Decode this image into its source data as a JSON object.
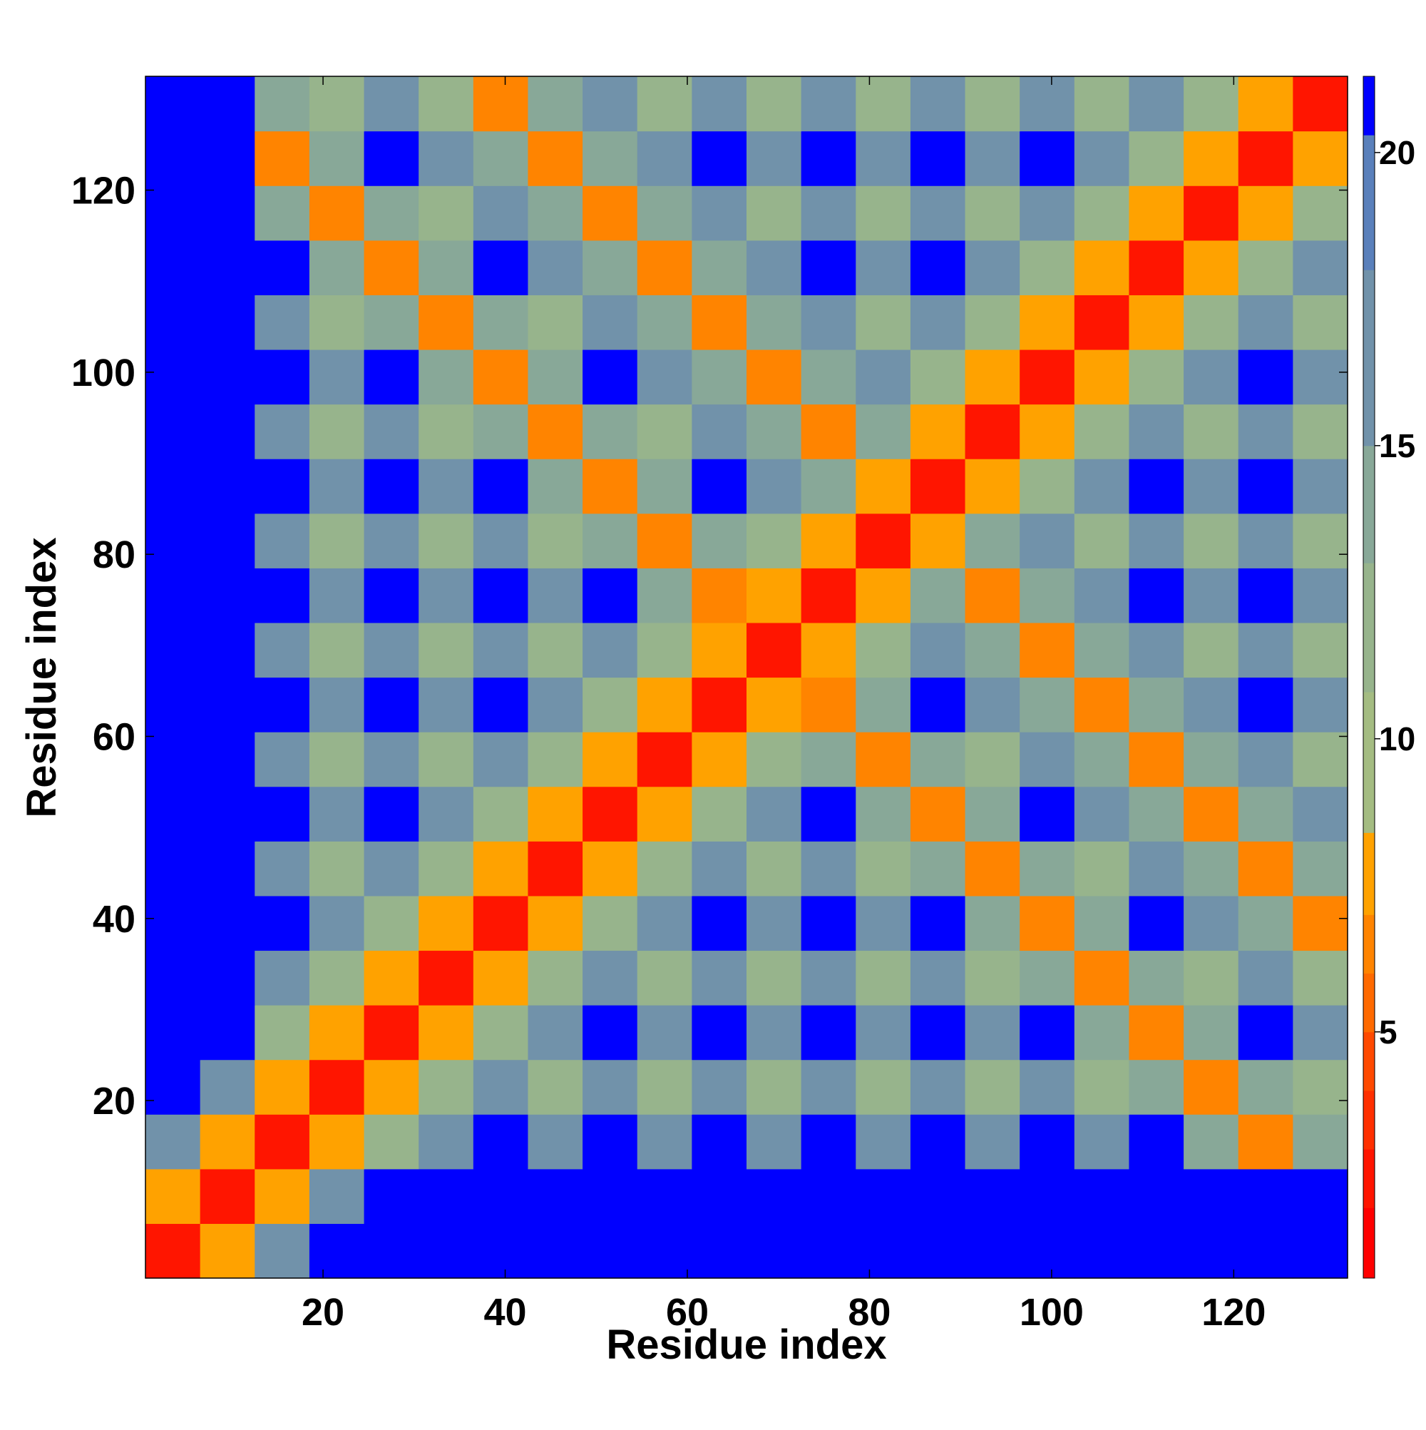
{
  "chart_data": {
    "type": "heatmap",
    "xlabel": "Residue index",
    "ylabel": "Residue index",
    "xbins": [
      0.5,
      6.5,
      12.5,
      18.5,
      24.5,
      30.5,
      36.5,
      42.5,
      48.5,
      54.5,
      60.5,
      66.5,
      72.5,
      78.5,
      84.5,
      90.5,
      96.5,
      102.5,
      108.5,
      114.5,
      120.5,
      126.5,
      132.5
    ],
    "ybins": [
      0.5,
      6.5,
      12.5,
      18.5,
      24.5,
      30.5,
      36.5,
      42.5,
      48.5,
      54.5,
      60.5,
      66.5,
      72.5,
      78.5,
      84.5,
      90.5,
      96.5,
      102.5,
      108.5,
      114.5,
      120.5,
      126.5,
      132.5
    ],
    "xlim": [
      0.5,
      132.5
    ],
    "ylim": [
      0.5,
      132.5
    ],
    "xticks": [
      20,
      40,
      60,
      80,
      100,
      120
    ],
    "yticks": [
      20,
      40,
      60,
      80,
      100,
      120
    ],
    "z": [
      [
        2,
        8,
        17,
        21,
        21,
        21,
        21,
        21,
        21,
        21,
        21,
        21,
        21,
        21,
        21,
        21,
        21,
        21,
        21,
        21,
        21,
        21
      ],
      [
        8,
        2,
        8,
        17,
        21,
        21,
        21,
        21,
        21,
        21,
        21,
        21,
        21,
        21,
        21,
        21,
        21,
        21,
        21,
        21,
        21,
        21
      ],
      [
        17,
        8,
        2,
        8,
        12,
        15,
        21,
        15,
        21,
        15,
        21,
        15,
        21,
        15,
        21,
        15,
        21,
        15,
        21,
        13,
        6,
        13
      ],
      [
        21,
        17,
        8,
        2,
        8,
        12,
        15,
        11,
        15,
        11,
        15,
        11,
        15,
        11,
        15,
        11,
        15,
        11,
        13,
        6,
        13,
        11
      ],
      [
        21,
        21,
        12,
        8,
        2,
        8,
        12,
        15,
        21,
        15,
        21,
        15,
        21,
        15,
        21,
        15,
        21,
        13,
        6,
        13,
        21,
        15
      ],
      [
        21,
        21,
        15,
        12,
        8,
        2,
        8,
        12,
        15,
        11,
        15,
        11,
        15,
        11,
        15,
        11,
        13,
        6,
        13,
        11,
        15,
        11
      ],
      [
        21,
        21,
        21,
        15,
        12,
        8,
        2,
        8,
        12,
        15,
        21,
        15,
        21,
        15,
        21,
        13,
        6,
        13,
        21,
        15,
        13,
        6
      ],
      [
        21,
        21,
        15,
        11,
        15,
        12,
        8,
        2,
        8,
        12,
        15,
        11,
        15,
        11,
        13,
        6,
        13,
        11,
        15,
        13,
        6,
        13
      ],
      [
        21,
        21,
        21,
        15,
        21,
        15,
        12,
        8,
        2,
        8,
        12,
        15,
        21,
        13,
        6,
        13,
        21,
        15,
        13,
        6,
        13,
        15
      ],
      [
        21,
        21,
        15,
        11,
        15,
        11,
        15,
        12,
        8,
        2,
        8,
        12,
        13,
        6,
        13,
        11,
        15,
        13,
        6,
        13,
        15,
        11
      ],
      [
        21,
        21,
        21,
        15,
        21,
        15,
        21,
        15,
        12,
        8,
        2,
        8,
        6,
        13,
        21,
        15,
        13,
        6,
        13,
        15,
        21,
        15
      ],
      [
        21,
        21,
        15,
        11,
        15,
        11,
        15,
        11,
        15,
        12,
        8,
        2,
        8,
        12,
        15,
        13,
        6,
        13,
        15,
        11,
        15,
        11
      ],
      [
        21,
        21,
        21,
        15,
        21,
        15,
        21,
        15,
        21,
        13,
        6,
        8,
        2,
        8,
        13,
        6,
        13,
        15,
        21,
        15,
        21,
        15
      ],
      [
        21,
        21,
        15,
        11,
        15,
        11,
        15,
        11,
        13,
        6,
        13,
        12,
        8,
        2,
        8,
        13,
        15,
        11,
        15,
        11,
        15,
        11
      ],
      [
        21,
        21,
        21,
        15,
        21,
        15,
        21,
        13,
        6,
        13,
        21,
        15,
        13,
        8,
        2,
        8,
        12,
        15,
        21,
        15,
        21,
        15
      ],
      [
        21,
        21,
        15,
        11,
        15,
        11,
        13,
        6,
        13,
        11,
        15,
        13,
        6,
        13,
        8,
        2,
        8,
        12,
        15,
        11,
        15,
        11
      ],
      [
        21,
        21,
        21,
        15,
        21,
        13,
        6,
        13,
        21,
        15,
        13,
        6,
        13,
        15,
        12,
        8,
        2,
        8,
        12,
        15,
        21,
        15
      ],
      [
        21,
        21,
        15,
        11,
        13,
        6,
        13,
        11,
        15,
        13,
        6,
        13,
        15,
        11,
        15,
        12,
        8,
        2,
        8,
        12,
        15,
        11
      ],
      [
        21,
        21,
        21,
        13,
        6,
        13,
        21,
        15,
        13,
        6,
        13,
        15,
        21,
        15,
        21,
        15,
        12,
        8,
        2,
        8,
        12,
        15
      ],
      [
        21,
        21,
        13,
        6,
        13,
        11,
        15,
        13,
        6,
        13,
        15,
        11,
        15,
        11,
        15,
        11,
        15,
        12,
        8,
        2,
        8,
        12
      ],
      [
        21,
        21,
        6,
        13,
        21,
        15,
        13,
        6,
        13,
        15,
        21,
        15,
        21,
        15,
        21,
        15,
        21,
        15,
        12,
        8,
        2,
        8
      ],
      [
        21,
        21,
        13,
        11,
        15,
        11,
        6,
        13,
        15,
        11,
        15,
        11,
        15,
        11,
        15,
        11,
        15,
        11,
        15,
        12,
        8,
        2
      ]
    ],
    "zlim": [
      0.8,
      21.3
    ],
    "zticks": [
      5,
      10,
      15,
      20
    ],
    "levels": [
      0.8,
      2,
      3,
      4,
      5,
      6,
      7,
      8.4,
      10.8,
      13,
      15,
      18,
      20.3,
      21.3
    ],
    "colors": [
      "#ff0000",
      "#ff1500",
      "#ff3000",
      "#ff4a00",
      "#ff6a00",
      "#ff8400",
      "#ffa200",
      "#a4bc82",
      "#97b48c",
      "#88a898",
      "#7192aa",
      "#5a80bb",
      "#0000ff"
    ]
  }
}
